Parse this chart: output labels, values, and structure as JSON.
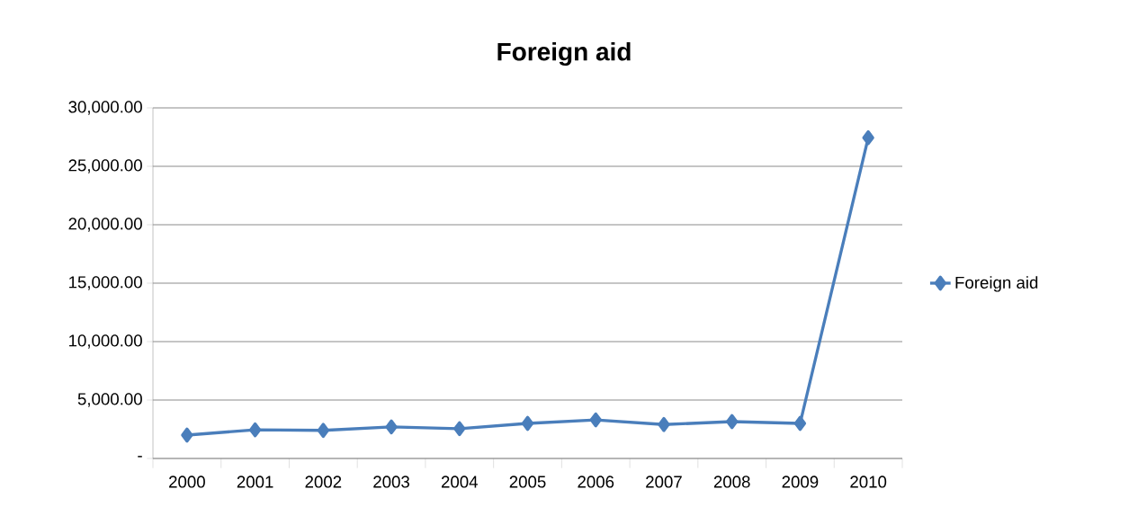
{
  "chart_data": {
    "type": "line",
    "title": "Foreign aid",
    "categories": [
      "2000",
      "2001",
      "2002",
      "2003",
      "2004",
      "2005",
      "2006",
      "2007",
      "2008",
      "2009",
      "2010"
    ],
    "series": [
      {
        "name": "Foreign aid",
        "color": "#4a7ebb",
        "values": [
          2000,
          2450,
          2400,
          2700,
          2550,
          3000,
          3300,
          2900,
          3150,
          3000,
          27450
        ]
      }
    ],
    "ylim": [
      0,
      30000
    ],
    "yticks": [
      {
        "value": 0,
        "label": "-"
      },
      {
        "value": 5000,
        "label": "5,000.00"
      },
      {
        "value": 10000,
        "label": "10,000.00"
      },
      {
        "value": 15000,
        "label": "15,000.00"
      },
      {
        "value": 20000,
        "label": "20,000.00"
      },
      {
        "value": 25000,
        "label": "25,000.00"
      },
      {
        "value": 30000,
        "label": "30,000.00"
      }
    ],
    "grid": "y",
    "legend": "right",
    "marker": "diamond",
    "line_style": "solid"
  }
}
